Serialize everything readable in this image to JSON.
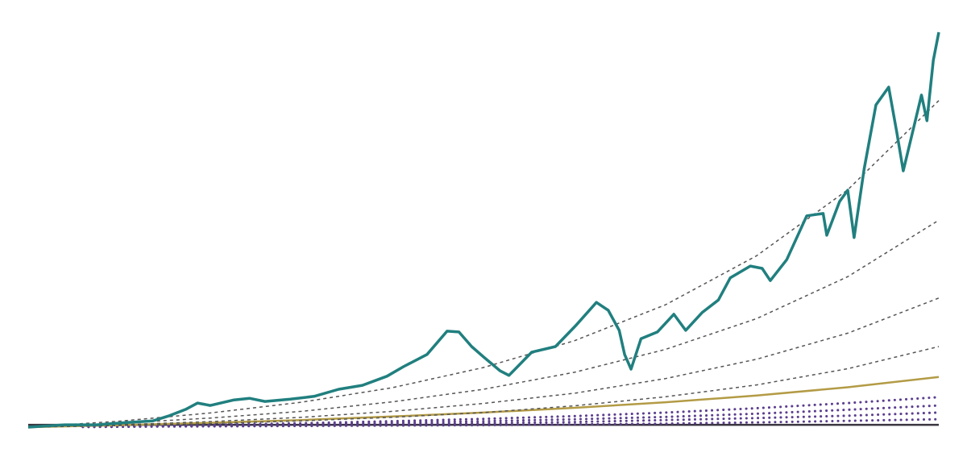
{
  "chart_data": {
    "type": "line",
    "xlim": [
      0,
      100
    ],
    "ylim": [
      0,
      100
    ],
    "series": [
      {
        "color": "#3a3540",
        "dash": "solid",
        "width": 2.5,
        "x": [
          0,
          10,
          20,
          30,
          40,
          50,
          60,
          70,
          80,
          90,
          100
        ],
        "values": [
          0.6,
          0.6,
          0.6,
          0.6,
          0.6,
          0.6,
          0.6,
          0.6,
          0.6,
          0.6,
          0.6
        ]
      },
      {
        "color": "#5b3e8e",
        "dash": "dotted",
        "width": 3,
        "x": [
          6,
          10,
          20,
          30,
          40,
          50,
          60,
          70,
          80,
          90,
          100
        ],
        "values": [
          0.05,
          0.1,
          0.2,
          0.3,
          0.4,
          0.5,
          0.7,
          0.9,
          1.2,
          1.6,
          2
        ]
      },
      {
        "color": "#5b3e8e",
        "dash": "dotted",
        "width": 3,
        "x": [
          6,
          10,
          20,
          30,
          40,
          50,
          60,
          70,
          80,
          90,
          100
        ],
        "values": [
          0.05,
          0.1,
          0.3,
          0.5,
          0.7,
          1,
          1.3,
          1.8,
          2.3,
          2.9,
          3.7
        ]
      },
      {
        "color": "#5b3e8e",
        "dash": "dotted",
        "width": 3,
        "x": [
          6,
          10,
          20,
          30,
          40,
          50,
          60,
          70,
          80,
          90,
          100
        ],
        "values": [
          0.1,
          0.2,
          0.4,
          0.7,
          1.1,
          1.5,
          2,
          2.6,
          3.4,
          4.4,
          5.5
        ]
      },
      {
        "color": "#5b3e8e",
        "dash": "dotted",
        "width": 3,
        "x": [
          6,
          10,
          20,
          30,
          40,
          50,
          60,
          70,
          80,
          90,
          100
        ],
        "values": [
          0.1,
          0.3,
          0.6,
          1,
          1.5,
          2.1,
          2.8,
          3.7,
          4.8,
          6.1,
          7.6
        ]
      },
      {
        "color": "#b39b45",
        "dash": "solid",
        "width": 2.5,
        "x": [
          0,
          10,
          20,
          30,
          40,
          50,
          60,
          70,
          80,
          90,
          100
        ],
        "values": [
          0,
          0.5,
          1.1,
          1.8,
          2.7,
          3.7,
          4.9,
          6.3,
          8,
          10.1,
          12.7
        ]
      },
      {
        "color": "#555555",
        "dash": "dashed",
        "width": 1.5,
        "x": [
          0,
          10,
          20,
          30,
          40,
          50,
          60,
          70,
          80,
          90,
          100
        ],
        "values": [
          0,
          0.4,
          0.9,
          1.6,
          2.5,
          3.7,
          5.4,
          7.7,
          10.7,
          14.8,
          20.4
        ]
      },
      {
        "color": "#555555",
        "dash": "dashed",
        "width": 1.5,
        "x": [
          0,
          10,
          20,
          30,
          40,
          50,
          60,
          70,
          80,
          90,
          100
        ],
        "values": [
          0,
          0.6,
          1.4,
          2.5,
          4,
          6,
          8.6,
          12.3,
          17.2,
          23.8,
          32.7
        ]
      },
      {
        "color": "#555555",
        "dash": "dashed",
        "width": 1.5,
        "x": [
          0,
          10,
          20,
          30,
          40,
          50,
          60,
          70,
          80,
          90,
          100
        ],
        "values": [
          0,
          1,
          2.3,
          4,
          6.4,
          9.6,
          13.9,
          19.7,
          27.5,
          38.1,
          52.4
        ]
      },
      {
        "color": "#555555",
        "dash": "dashed",
        "width": 1.5,
        "x": [
          0,
          10,
          20,
          30,
          40,
          50,
          60,
          70,
          80,
          90,
          100
        ],
        "values": [
          0,
          1.5,
          3.6,
          6.3,
          10,
          15.1,
          21.9,
          31,
          43.4,
          60.1,
          82.7
        ]
      },
      {
        "color": "#217f7f",
        "dash": "solid",
        "width": 3.5,
        "x": [
          0,
          4,
          7.5,
          11,
          13.7,
          15.5,
          17.3,
          18.6,
          20,
          22.6,
          24.3,
          26,
          28.8,
          31.4,
          34.1,
          36.7,
          39.4,
          41.2,
          43.8,
          46,
          47.3,
          48.7,
          50,
          51.8,
          52.8,
          55.3,
          57.9,
          60.2,
          62.4,
          63.7,
          64.9,
          65.5,
          66.2,
          67.3,
          69.1,
          70.9,
          72.2,
          74,
          75.8,
          77.1,
          79.3,
          80.6,
          81.5,
          83.3,
          85.5,
          87.3,
          87.7,
          89.1,
          90,
          90.7,
          91.8,
          93.1,
          94.5,
          95.4,
          96.1,
          97.2,
          98.1,
          98.7,
          99.4,
          100
        ],
        "values": [
          0,
          0.6,
          0.6,
          1.2,
          1.6,
          2.9,
          4.5,
          6.1,
          5.5,
          6.9,
          7.3,
          6.5,
          7.1,
          7.8,
          9.6,
          10.6,
          12.9,
          15.3,
          18.4,
          24.3,
          24.1,
          20.4,
          17.8,
          14.3,
          13.1,
          19,
          20.4,
          25.9,
          31.6,
          29.6,
          24.5,
          18.4,
          14.7,
          22.4,
          24.1,
          28.6,
          24.5,
          29,
          32.2,
          37.8,
          40.8,
          40.2,
          37.1,
          42.4,
          53.5,
          54.1,
          48.6,
          57.1,
          60,
          48,
          65.3,
          81.6,
          86.1,
          74.5,
          64.9,
          75.5,
          84.1,
          77.6,
          92.9,
          100
        ]
      }
    ]
  }
}
